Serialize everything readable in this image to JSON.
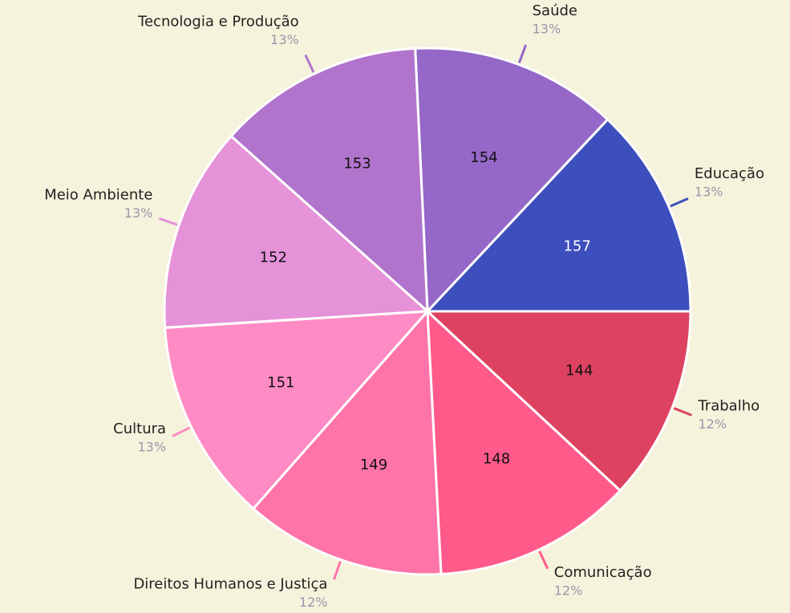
{
  "chart_data": {
    "type": "pie",
    "categories": [
      "Educação",
      "Saúde",
      "Tecnologia e Produção",
      "Meio Ambiente",
      "Cultura",
      "Direitos Humanos e Justiça",
      "Comunicação",
      "Trabalho"
    ],
    "values": [
      157,
      154,
      153,
      152,
      151,
      149,
      148,
      144
    ],
    "percent_labels": [
      "13%",
      "13%",
      "13%",
      "13%",
      "13%",
      "12%",
      "12%",
      "12%"
    ],
    "colors": [
      "#3d4fbd",
      "#9467c8",
      "#b174cc",
      "#e592d8",
      "#ff8bc4",
      "#ff74a8",
      "#ff5a8a",
      "#dd4260"
    ],
    "value_label_colors": [
      "#ffffff",
      "#111111",
      "#111111",
      "#111111",
      "#111111",
      "#111111",
      "#111111",
      "#111111"
    ]
  }
}
